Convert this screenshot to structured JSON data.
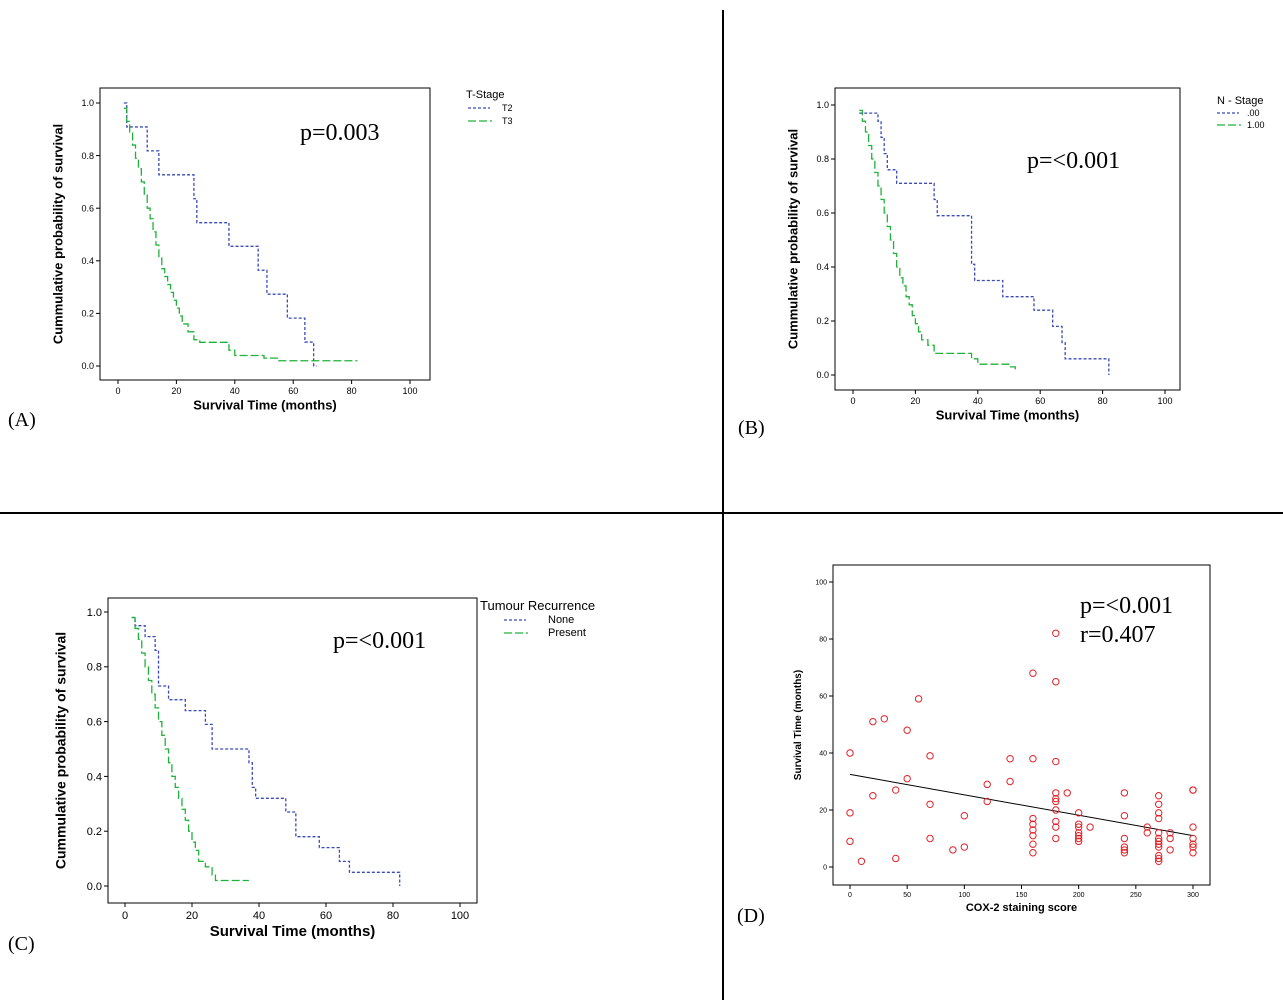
{
  "figure": {
    "divider_color": "#000000"
  },
  "colors": {
    "blue": "#3a4bb8",
    "green": "#1fb23a",
    "red": "#e0232a",
    "black": "#000000"
  },
  "chart_data": [
    {
      "panel": "(A)",
      "type": "line",
      "subtype": "kaplan-meier-step",
      "annotation": "p=0.003",
      "xlabel": "Survival Time (months)",
      "ylabel": "Cummulative probability of survival",
      "xlim": [
        0,
        100
      ],
      "ylim": [
        0,
        1
      ],
      "xticks": [
        0,
        20,
        40,
        60,
        80,
        100
      ],
      "yticks": [
        0.0,
        0.2,
        0.4,
        0.6,
        0.8,
        1.0
      ],
      "xtick_labels": [
        "0",
        "20",
        "40",
        "60",
        "80",
        "100"
      ],
      "ytick_labels": [
        "0.0",
        "0.2",
        "0.4",
        "0.6",
        "0.8",
        "1.0"
      ],
      "legend": {
        "title": "T-Stage",
        "placement": "top-right outside"
      },
      "series": [
        {
          "name": "T2",
          "color": "blue",
          "dash": "short",
          "x": [
            2,
            3,
            6,
            10,
            14,
            26,
            27,
            38,
            48,
            51,
            58,
            64,
            67,
            68
          ],
          "y": [
            1.0,
            0.909,
            0.909,
            0.818,
            0.727,
            0.636,
            0.545,
            0.455,
            0.364,
            0.273,
            0.182,
            0.091,
            0.0,
            0.0
          ]
        },
        {
          "name": "T3",
          "color": "green",
          "dash": "long",
          "x": [
            2,
            3,
            4,
            5,
            6,
            7,
            8,
            9,
            10,
            11,
            12,
            13,
            14,
            15,
            16,
            17,
            18,
            19,
            20,
            21,
            22,
            24,
            26,
            28,
            34,
            38,
            40,
            50,
            55,
            82
          ],
          "y": [
            0.98,
            0.93,
            0.89,
            0.84,
            0.79,
            0.75,
            0.7,
            0.65,
            0.6,
            0.56,
            0.51,
            0.46,
            0.41,
            0.37,
            0.34,
            0.31,
            0.28,
            0.25,
            0.22,
            0.19,
            0.16,
            0.13,
            0.1,
            0.09,
            0.09,
            0.06,
            0.04,
            0.03,
            0.02,
            0.02
          ]
        }
      ]
    },
    {
      "panel": "(B)",
      "type": "line",
      "subtype": "kaplan-meier-step",
      "annotation": "p=<0.001",
      "xlabel": "Survival Time (months)",
      "ylabel": "Cummulative probability of survival",
      "xlim": [
        0,
        100
      ],
      "ylim": [
        0,
        1
      ],
      "xticks": [
        0,
        20,
        40,
        60,
        80,
        100
      ],
      "yticks": [
        0.0,
        0.2,
        0.4,
        0.6,
        0.8,
        1.0
      ],
      "xtick_labels": [
        "0",
        "20",
        "40",
        "60",
        "80",
        "100"
      ],
      "ytick_labels": [
        "0.0",
        "0.2",
        "0.4",
        "0.6",
        "0.8",
        "1.0"
      ],
      "legend": {
        "title": "N - Stage",
        "placement": "top-right outside"
      },
      "series": [
        {
          "name": ".00",
          "color": "blue",
          "dash": "short",
          "x": [
            2,
            8,
            9,
            10,
            11,
            14,
            26,
            27,
            38,
            39,
            48,
            58,
            64,
            67,
            68,
            82
          ],
          "y": [
            0.97,
            0.94,
            0.88,
            0.82,
            0.76,
            0.71,
            0.65,
            0.59,
            0.41,
            0.35,
            0.29,
            0.24,
            0.18,
            0.12,
            0.06,
            0.0
          ]
        },
        {
          "name": "1.00",
          "color": "green",
          "dash": "long",
          "x": [
            2,
            3,
            4,
            5,
            6,
            7,
            8,
            9,
            10,
            11,
            12,
            13,
            14,
            15,
            16,
            17,
            18,
            19,
            20,
            21,
            22,
            24,
            26,
            28,
            34,
            38,
            40,
            50,
            52
          ],
          "y": [
            0.98,
            0.94,
            0.9,
            0.85,
            0.8,
            0.75,
            0.7,
            0.65,
            0.6,
            0.55,
            0.5,
            0.45,
            0.4,
            0.36,
            0.33,
            0.29,
            0.26,
            0.22,
            0.19,
            0.16,
            0.13,
            0.11,
            0.08,
            0.08,
            0.08,
            0.06,
            0.04,
            0.03,
            0.01
          ]
        }
      ]
    },
    {
      "panel": "(C)",
      "type": "line",
      "subtype": "kaplan-meier-step",
      "annotation": "p=<0.001",
      "xlabel": "Survival Time (months)",
      "ylabel": "Cummulative probability of survival",
      "xlim": [
        0,
        100
      ],
      "ylim": [
        0,
        1
      ],
      "xticks": [
        0,
        20,
        40,
        60,
        80,
        100
      ],
      "yticks": [
        0.0,
        0.2,
        0.4,
        0.6,
        0.8,
        1.0
      ],
      "xtick_labels": [
        "0",
        "20",
        "40",
        "60",
        "80",
        "100"
      ],
      "ytick_labels": [
        "0.0",
        "0.2",
        "0.4",
        "0.6",
        "0.8",
        "1.0"
      ],
      "legend": {
        "title": "Tumour Recurrence",
        "placement": "top-right"
      },
      "series": [
        {
          "name": "None",
          "color": "blue",
          "dash": "short",
          "x": [
            2,
            3,
            6,
            9,
            10,
            13,
            14,
            18,
            24,
            26,
            27,
            37,
            38,
            39,
            48,
            51,
            58,
            64,
            67,
            68,
            82
          ],
          "y": [
            0.98,
            0.95,
            0.91,
            0.86,
            0.73,
            0.68,
            0.68,
            0.64,
            0.59,
            0.5,
            0.5,
            0.45,
            0.36,
            0.32,
            0.27,
            0.18,
            0.14,
            0.09,
            0.05,
            0.05,
            0.0
          ]
        },
        {
          "name": "Present",
          "color": "green",
          "dash": "long",
          "x": [
            2,
            3,
            4,
            5,
            6,
            7,
            8,
            9,
            10,
            11,
            12,
            13,
            14,
            15,
            16,
            17,
            18,
            19,
            20,
            21,
            22,
            24,
            26,
            27,
            37
          ],
          "y": [
            0.98,
            0.94,
            0.9,
            0.85,
            0.8,
            0.75,
            0.7,
            0.65,
            0.6,
            0.55,
            0.5,
            0.45,
            0.4,
            0.36,
            0.32,
            0.28,
            0.24,
            0.2,
            0.16,
            0.13,
            0.09,
            0.07,
            0.04,
            0.02,
            0.02
          ]
        }
      ]
    },
    {
      "panel": "(D)",
      "type": "scatter",
      "annotation": "p=<0.001",
      "annotation2": "r=0.407",
      "xlabel": "COX-2 staining score",
      "ylabel": "Survival Time (months)",
      "xlim": [
        0,
        300
      ],
      "ylim": [
        0,
        100
      ],
      "xticks": [
        0,
        50,
        100,
        150,
        200,
        250,
        300
      ],
      "yticks": [
        0,
        20,
        40,
        60,
        80,
        100
      ],
      "xtick_labels": [
        "0",
        "50",
        "100",
        "150",
        "200",
        "250",
        "300"
      ],
      "ytick_labels": [
        "0",
        "20",
        "40",
        "60",
        "80",
        "100"
      ],
      "fit_line": {
        "x": [
          0,
          300
        ],
        "y": [
          32.5,
          11
        ],
        "color": "black"
      },
      "points": [
        [
          0,
          40
        ],
        [
          0,
          19
        ],
        [
          0,
          9
        ],
        [
          10,
          2
        ],
        [
          20,
          51
        ],
        [
          20,
          25
        ],
        [
          30,
          52
        ],
        [
          40,
          27
        ],
        [
          40,
          3
        ],
        [
          50,
          48
        ],
        [
          50,
          31
        ],
        [
          60,
          59
        ],
        [
          70,
          39
        ],
        [
          70,
          22
        ],
        [
          70,
          10
        ],
        [
          90,
          6
        ],
        [
          100,
          18
        ],
        [
          100,
          7
        ],
        [
          120,
          29
        ],
        [
          120,
          23
        ],
        [
          140,
          38
        ],
        [
          140,
          30
        ],
        [
          160,
          68
        ],
        [
          160,
          38
        ],
        [
          160,
          17
        ],
        [
          160,
          15
        ],
        [
          160,
          13
        ],
        [
          160,
          11
        ],
        [
          160,
          8
        ],
        [
          160,
          5
        ],
        [
          180,
          82
        ],
        [
          180,
          65
        ],
        [
          180,
          37
        ],
        [
          180,
          26
        ],
        [
          180,
          24
        ],
        [
          180,
          23
        ],
        [
          180,
          20
        ],
        [
          180,
          16
        ],
        [
          180,
          14
        ],
        [
          180,
          10
        ],
        [
          190,
          26
        ],
        [
          200,
          19
        ],
        [
          200,
          15
        ],
        [
          200,
          14
        ],
        [
          200,
          12
        ],
        [
          200,
          11
        ],
        [
          200,
          10
        ],
        [
          200,
          9
        ],
        [
          210,
          14
        ],
        [
          240,
          26
        ],
        [
          240,
          18
        ],
        [
          240,
          10
        ],
        [
          240,
          7
        ],
        [
          240,
          6
        ],
        [
          240,
          5
        ],
        [
          260,
          14
        ],
        [
          260,
          12
        ],
        [
          270,
          25
        ],
        [
          270,
          22
        ],
        [
          270,
          19
        ],
        [
          270,
          17
        ],
        [
          270,
          12
        ],
        [
          270,
          10
        ],
        [
          270,
          9
        ],
        [
          270,
          8
        ],
        [
          270,
          7
        ],
        [
          270,
          4
        ],
        [
          270,
          3
        ],
        [
          270,
          2
        ],
        [
          280,
          12
        ],
        [
          280,
          10
        ],
        [
          280,
          6
        ],
        [
          300,
          27
        ],
        [
          300,
          27
        ],
        [
          300,
          14
        ],
        [
          300,
          10
        ],
        [
          300,
          8
        ],
        [
          300,
          7
        ],
        [
          300,
          5
        ]
      ]
    }
  ]
}
